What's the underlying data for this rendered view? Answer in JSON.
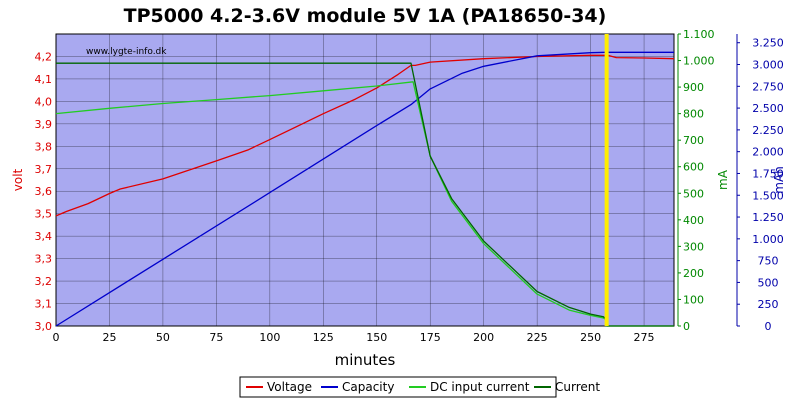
{
  "chart_data": {
    "type": "line",
    "title": "TP5000 4.2-3.6V module 5V 1A (PA18650-34)",
    "watermark": "www.lygte-info.dk",
    "xlabel": "minutes",
    "xlim": [
      0,
      289
    ],
    "xticks": [
      0,
      25,
      50,
      75,
      100,
      125,
      150,
      175,
      200,
      225,
      250,
      275
    ],
    "axes": {
      "left": {
        "label": "volt",
        "min": 3.0,
        "max": 4.3,
        "color": "#dd0000",
        "ticks": [
          3.0,
          3.1,
          3.2,
          3.3,
          3.4,
          3.5,
          3.6,
          3.7,
          3.8,
          3.9,
          4.0,
          4.1,
          4.2
        ],
        "tick_labels": [
          "3,0",
          "3,1",
          "3,2",
          "3,3",
          "3,4",
          "3,5",
          "3,6",
          "3,7",
          "3,8",
          "3,9",
          "4,0",
          "4,1",
          "4,2"
        ]
      },
      "right1": {
        "label": "mA",
        "min": 0,
        "max": 1100,
        "color": "#008800",
        "ticks": [
          0,
          100,
          200,
          300,
          400,
          500,
          600,
          700,
          800,
          900,
          1000,
          1100
        ],
        "tick_labels": [
          "0",
          "100",
          "200",
          "300",
          "400",
          "500",
          "600",
          "700",
          "800",
          "900",
          "1.000",
          "1.100"
        ]
      },
      "right2": {
        "label": "mAh",
        "min": 0,
        "max": 3350,
        "color": "#0000aa",
        "ticks": [
          0,
          250,
          500,
          750,
          1000,
          1250,
          1500,
          1750,
          2000,
          2250,
          2500,
          2750,
          3000,
          3250
        ],
        "tick_labels": [
          "0",
          "250",
          "500",
          "750",
          "1.000",
          "1.250",
          "1.500",
          "1.750",
          "2.000",
          "2.250",
          "2.500",
          "2.750",
          "3.000",
          "3.250"
        ]
      }
    },
    "grid": true,
    "legend_position": "bottom",
    "marker_line": {
      "x": 257.5,
      "color": "#ffee00"
    },
    "colors": {
      "plot_bg": "#a9a9f0",
      "grid": "#000000"
    },
    "series": [
      {
        "name": "Voltage",
        "axis": "left",
        "color": "#e00000",
        "x": [
          0,
          5,
          15,
          25,
          30,
          50,
          75,
          90,
          100,
          125,
          140,
          150,
          160,
          166,
          168,
          175,
          200,
          225,
          250,
          255,
          258,
          262,
          275,
          289
        ],
        "y": [
          3.49,
          3.51,
          3.545,
          3.59,
          3.61,
          3.655,
          3.735,
          3.785,
          3.83,
          3.945,
          4.01,
          4.06,
          4.12,
          4.16,
          4.16,
          4.175,
          4.19,
          4.2,
          4.205,
          4.205,
          4.205,
          4.195,
          4.193,
          4.19
        ]
      },
      {
        "name": "Capacity",
        "axis": "right2",
        "color": "#0000cc",
        "x": [
          0,
          50,
          100,
          150,
          166,
          175,
          190,
          200,
          225,
          250,
          257,
          289
        ],
        "y": [
          0,
          765,
          1530,
          2300,
          2540,
          2720,
          2900,
          2980,
          3100,
          3135,
          3140,
          3140
        ]
      },
      {
        "name": "DC input current",
        "axis": "right1",
        "color": "#22cc22",
        "x": [
          0,
          25,
          50,
          75,
          100,
          125,
          150,
          167,
          175,
          185,
          200,
          225,
          240,
          250,
          256,
          257,
          257.5,
          289
        ],
        "y": [
          800,
          820,
          838,
          853,
          868,
          886,
          904,
          920,
          640,
          470,
          310,
          120,
          60,
          40,
          30,
          25,
          0,
          0
        ]
      },
      {
        "name": "Current",
        "axis": "right1",
        "color": "#006600",
        "x": [
          0,
          166,
          175,
          185,
          200,
          225,
          240,
          250,
          256,
          257,
          257.5,
          289
        ],
        "y": [
          990,
          990,
          640,
          480,
          320,
          130,
          70,
          45,
          35,
          28,
          0,
          0
        ]
      }
    ]
  }
}
